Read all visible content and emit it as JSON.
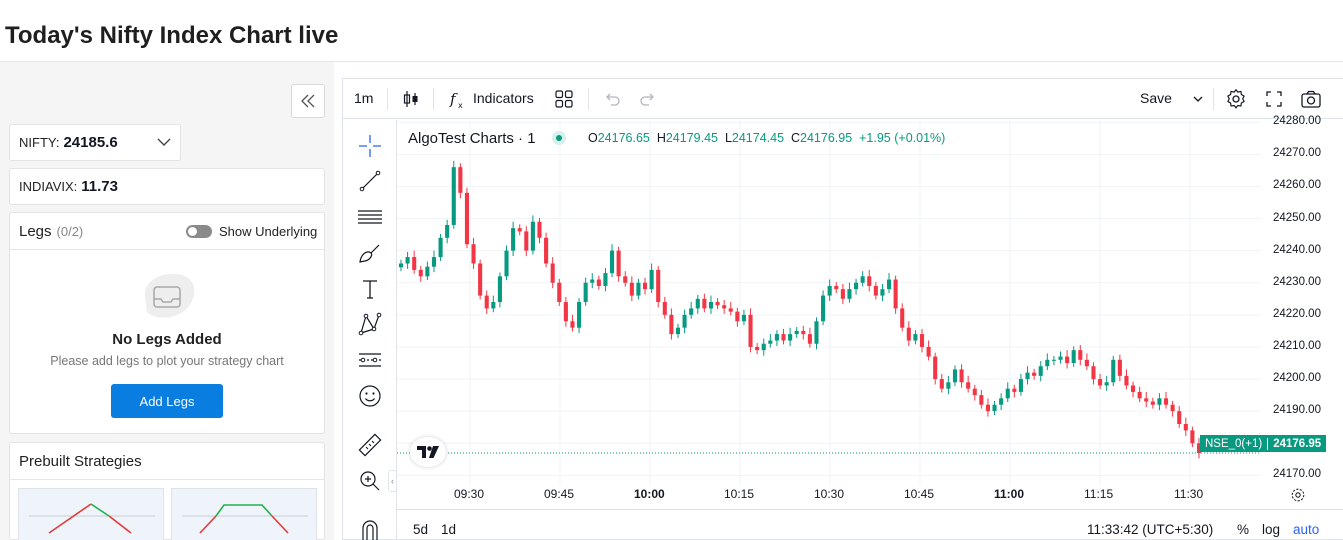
{
  "page": {
    "title": "Today's Nifty Index Chart live"
  },
  "left": {
    "nifty_label": "NIFTY:",
    "nifty_value": "24185.6",
    "vix_label": "INDIAVIX:",
    "vix_value": "11.73",
    "legs_title": "Legs",
    "legs_count": "(0/2)",
    "show_underlying": "Show Underlying",
    "no_legs_title": "No Legs Added",
    "no_legs_sub": "Please add legs to plot your strategy chart",
    "add_legs": "Add Legs",
    "prebuilt_title": "Prebuilt Strategies"
  },
  "toolbar": {
    "interval": "1m",
    "indicators": "Indicators",
    "save": "Save"
  },
  "legend": {
    "name": "AlgoTest Charts · 1",
    "o_label": "O",
    "o": "24176.65",
    "h_label": "H",
    "h": "24179.45",
    "l_label": "L",
    "l": "24174.45",
    "c_label": "C",
    "c": "24176.95",
    "change": "+1.95 (+0.01%)"
  },
  "price_tag": {
    "name": "NSE_0(+1)",
    "price": "24176.95"
  },
  "bottom": {
    "range_5d": "5d",
    "range_1d": "1d",
    "time": "11:33:42 (UTC+5:30)",
    "pct": "%",
    "log": "log",
    "auto": "auto"
  },
  "colors": {
    "up": "#089981",
    "down": "#f23645",
    "accent": "#2962ff",
    "button": "#0a7de0"
  },
  "chart_data": {
    "type": "candlestick",
    "y_ticks": [
      "24280.00",
      "24270.00",
      "24260.00",
      "24250.00",
      "24240.00",
      "24230.00",
      "24220.00",
      "24210.00",
      "24200.00",
      "24190.00",
      "24180.00",
      "24170.00"
    ],
    "ylim": [
      24167,
      24281
    ],
    "x_ticks": [
      {
        "label": "09:30",
        "bold": false
      },
      {
        "label": "09:45",
        "bold": false
      },
      {
        "label": "10:00",
        "bold": true
      },
      {
        "label": "10:15",
        "bold": false
      },
      {
        "label": "10:30",
        "bold": false
      },
      {
        "label": "10:45",
        "bold": false
      },
      {
        "label": "11:00",
        "bold": true
      },
      {
        "label": "11:15",
        "bold": false
      },
      {
        "label": "11:30",
        "bold": false
      }
    ],
    "last_price": 24176.95,
    "close_series": [
      24236,
      24238,
      24234,
      24232,
      24235,
      24238,
      24244,
      24248,
      24266,
      24258,
      24242,
      24236,
      24226,
      24222,
      24224,
      24232,
      24240,
      24247,
      24246,
      24240,
      24249,
      24244,
      24236,
      24230,
      24224,
      24218,
      24216,
      24224,
      24230,
      24231,
      24229,
      24233,
      24240,
      24232,
      24230,
      24226,
      24230,
      24228,
      24234,
      24224,
      24220,
      24214,
      24216,
      24220,
      24222,
      24225,
      24222,
      24224,
      24223,
      24222,
      24221,
      24218,
      24220,
      24210,
      24209,
      24211,
      24212,
      24214,
      24212,
      24214,
      24215,
      24214,
      24211,
      24218,
      24226,
      24229,
      24228,
      24225,
      24228,
      24230,
      24232,
      24229,
      24226,
      24228,
      24231,
      24222,
      24216,
      24212,
      24214,
      24210,
      24207,
      24200,
      24197,
      24199,
      24203,
      24199,
      24197,
      24195,
      24192,
      24190,
      24192,
      24194,
      24197,
      24196,
      24200,
      24202,
      24201,
      24204,
      24206,
      24206,
      24207,
      24205,
      24209,
      24206,
      24204,
      24200,
      24198,
      24199,
      24206,
      24201,
      24198,
      24196,
      24194,
      24193,
      24192,
      24194,
      24192,
      24190,
      24186,
      24184,
      24180,
      24176.95
    ]
  }
}
